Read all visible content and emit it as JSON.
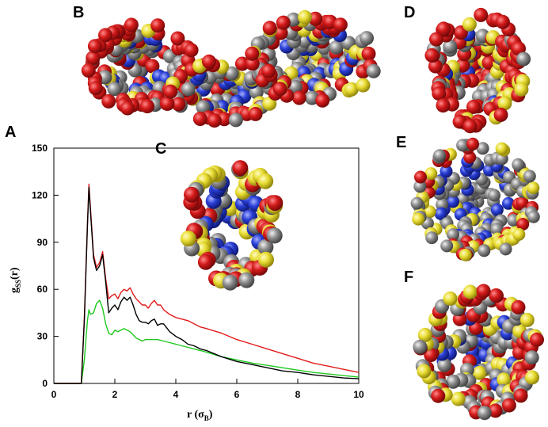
{
  "panels": {
    "a": "A",
    "b": "B",
    "c": "C",
    "d": "D",
    "e": "E",
    "f": "F"
  },
  "atom_colors": {
    "red": "#d41a1a",
    "yellow": "#e8dc32",
    "gray": "#8e8e8e",
    "blue": "#2a3fd6"
  },
  "chart_data": {
    "type": "line",
    "title": "",
    "xlabel": {
      "main": "r (σ",
      "sub": "B",
      "close": ")"
    },
    "ylabel": {
      "main": "g",
      "sub": "SS",
      "close": "(r)"
    },
    "xlim": [
      0,
      10
    ],
    "ylim": [
      0,
      150
    ],
    "xticks": [
      "0",
      "2",
      "4",
      "6",
      "8",
      "10"
    ],
    "yticks": [
      "0",
      "30",
      "60",
      "90",
      "120",
      "150"
    ],
    "grid": false,
    "legend": "none",
    "series": [
      {
        "color": "#000000",
        "x": [
          0,
          0.9,
          1.0,
          1.1,
          1.15,
          1.2,
          1.3,
          1.4,
          1.5,
          1.6,
          1.7,
          1.8,
          1.9,
          2.0,
          2.1,
          2.2,
          2.3,
          2.4,
          2.5,
          2.6,
          2.7,
          2.8,
          2.9,
          3.0,
          3.1,
          3.2,
          3.3,
          3.4,
          3.5,
          3.6,
          3.8,
          4.0,
          4.2,
          4.4,
          4.6,
          4.8,
          5.0,
          5.5,
          6.0,
          6.5,
          7.0,
          7.5,
          8.0,
          8.5,
          9.0,
          9.5,
          10.0
        ],
        "y": [
          0,
          0,
          40,
          100,
          125,
          110,
          80,
          72,
          75,
          82,
          65,
          45,
          48,
          50,
          47,
          52,
          55,
          53,
          55,
          50,
          44,
          40,
          39,
          39,
          38,
          40,
          41,
          37,
          38,
          38,
          33,
          30,
          28,
          25,
          24,
          22,
          21,
          17,
          14,
          12,
          10,
          8,
          7,
          5.5,
          4.5,
          3.5,
          3
        ]
      },
      {
        "color": "#e21b1b",
        "x": [
          0,
          0.9,
          1.0,
          1.1,
          1.15,
          1.2,
          1.3,
          1.4,
          1.5,
          1.6,
          1.7,
          1.8,
          1.9,
          2.0,
          2.1,
          2.2,
          2.3,
          2.4,
          2.5,
          2.6,
          2.7,
          2.8,
          2.9,
          3.0,
          3.1,
          3.2,
          3.3,
          3.4,
          3.5,
          3.6,
          3.8,
          4.0,
          4.2,
          4.4,
          4.6,
          4.8,
          5.0,
          5.5,
          6.0,
          6.5,
          7.0,
          7.5,
          8.0,
          8.5,
          9.0,
          9.5,
          10.0
        ],
        "y": [
          0,
          0,
          42,
          102,
          127,
          112,
          82,
          74,
          77,
          84,
          67,
          54,
          56,
          57,
          54,
          58,
          60,
          59,
          61,
          57,
          54,
          52,
          50,
          50,
          48,
          51,
          53,
          50,
          50,
          47,
          44,
          42,
          41,
          40,
          38,
          36,
          35,
          32,
          28,
          25,
          22,
          19,
          16,
          13,
          11,
          9,
          7
        ]
      },
      {
        "color": "#1ec81e",
        "x": [
          0,
          0.9,
          1.0,
          1.1,
          1.15,
          1.2,
          1.3,
          1.4,
          1.5,
          1.6,
          1.7,
          1.8,
          1.9,
          2.0,
          2.1,
          2.2,
          2.3,
          2.4,
          2.5,
          2.6,
          2.7,
          2.8,
          2.9,
          3.0,
          3.2,
          3.4,
          3.6,
          3.8,
          4.0,
          4.2,
          4.4,
          4.6,
          4.8,
          5.0,
          5.5,
          6.0,
          6.5,
          7.0,
          7.5,
          8.0,
          8.5,
          9.0,
          9.5,
          10.0
        ],
        "y": [
          0,
          0,
          15,
          40,
          47,
          44,
          45,
          51,
          53,
          48,
          38,
          32,
          31,
          34,
          33,
          34,
          35,
          34,
          33,
          31,
          29,
          28,
          27,
          28,
          28,
          28,
          27,
          26,
          25,
          24,
          23,
          22,
          21,
          20,
          17,
          15,
          13,
          11.5,
          10,
          8.5,
          7,
          6,
          5,
          4
        ]
      }
    ]
  }
}
